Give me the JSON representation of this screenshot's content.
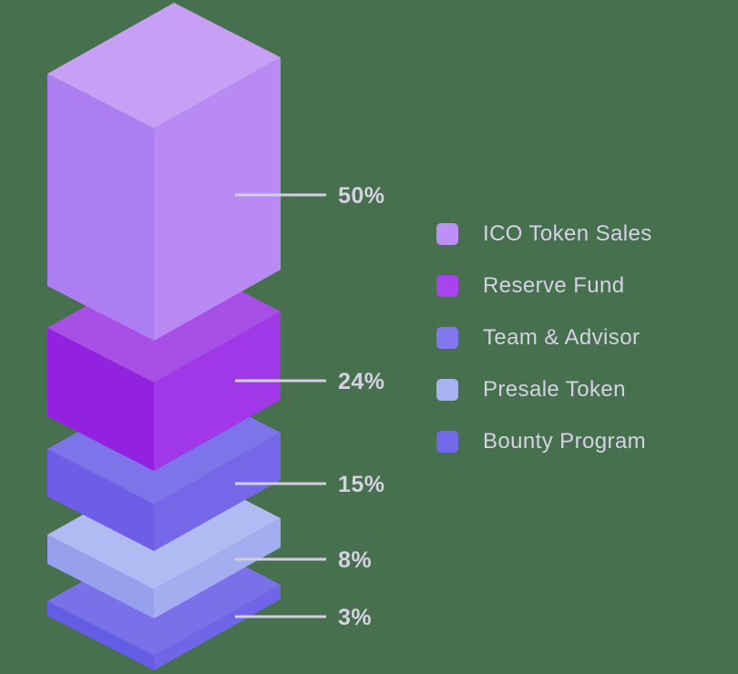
{
  "chart_data": {
    "type": "bar",
    "variant": "isometric-exploded-stack",
    "orientation": "vertical",
    "categories": [
      "ICO Token Sales",
      "Reserve Fund",
      "Team & Advisor",
      "Presale Token",
      "Bounty Program"
    ],
    "values": [
      50,
      24,
      15,
      8,
      3
    ],
    "unit": "%",
    "callout_labels": [
      "50%",
      "24%",
      "15%",
      "8%",
      "3%"
    ],
    "legend_position": "right",
    "grid": "off",
    "colors": {
      "background": "#47704F",
      "label_text": "#D5D2E2",
      "legend_text": "#D5D2E3",
      "leader_line": "#D2CFE0",
      "blocks": [
        {
          "top": "#C7A0F6",
          "left": "#AD7EF1",
          "right": "#BA8AF4",
          "legend_swatch": "#BD90F5"
        },
        {
          "top": "#A84FE8",
          "left": "#9322E0",
          "right": "#A138E7",
          "legend_swatch": "#A843EF"
        },
        {
          "top": "#7D74E9",
          "left": "#6E5EE7",
          "right": "#7667E9",
          "legend_swatch": "#8277EC"
        },
        {
          "top": "#B1BBF3",
          "left": "#96A0EC",
          "right": "#A3ADF0",
          "legend_swatch": "#A7B2F0"
        },
        {
          "top": "#7971EA",
          "left": "#655CE4",
          "right": "#6E65E7",
          "legend_swatch": "#7269E8"
        }
      ]
    }
  }
}
